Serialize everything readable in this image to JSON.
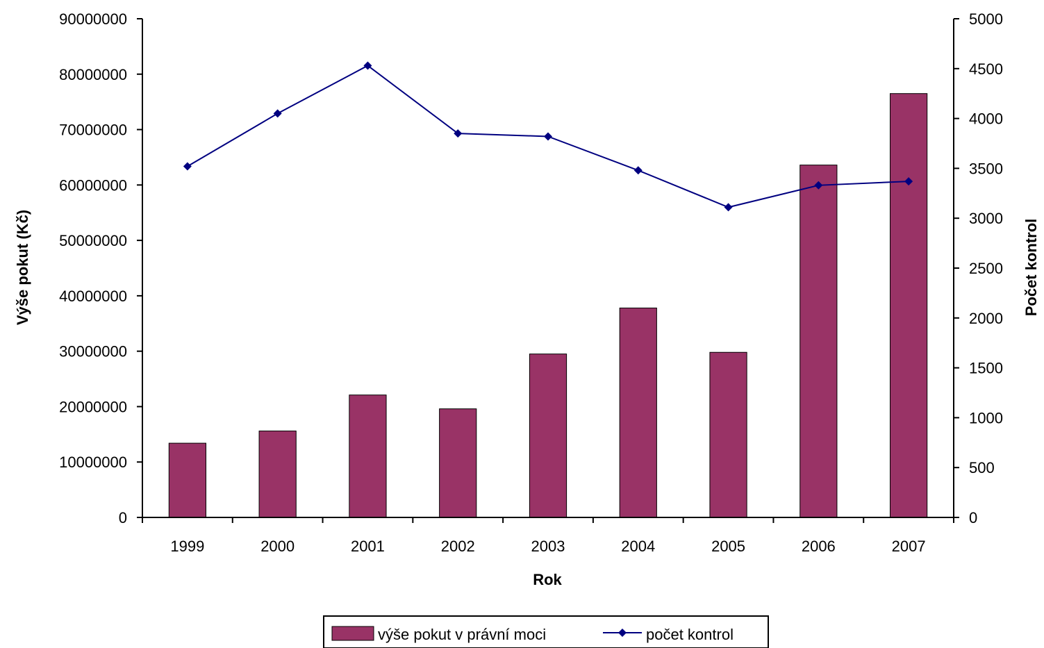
{
  "chart_data": {
    "type": "bar",
    "categories": [
      "1999",
      "2000",
      "2001",
      "2002",
      "2003",
      "2004",
      "2005",
      "2006",
      "2007"
    ],
    "series": [
      {
        "name": "výše pokut v právní moci",
        "type": "bar",
        "axis": "left",
        "color": "#993366",
        "values": [
          13400000,
          15600000,
          22100000,
          19600000,
          29500000,
          37800000,
          29800000,
          63600000,
          76500000
        ]
      },
      {
        "name": "počet kontrol",
        "type": "line",
        "axis": "right",
        "color": "#000080",
        "values": [
          3520,
          4050,
          4530,
          3850,
          3820,
          3480,
          3110,
          3330,
          3370
        ]
      }
    ],
    "xlabel": "Rok",
    "ylabel": "Výše pokut (Kč)",
    "y2label": "Počet kontrol",
    "ylim": [
      0,
      90000000
    ],
    "y2lim": [
      0,
      5000
    ],
    "yticks": [
      "0",
      "10000000",
      "20000000",
      "30000000",
      "40000000",
      "50000000",
      "60000000",
      "70000000",
      "80000000",
      "90000000"
    ],
    "y2ticks": [
      "0",
      "500",
      "1000",
      "1500",
      "2000",
      "2500",
      "3000",
      "3500",
      "4000",
      "4500",
      "5000"
    ],
    "grid": false,
    "legend": "bottom"
  }
}
